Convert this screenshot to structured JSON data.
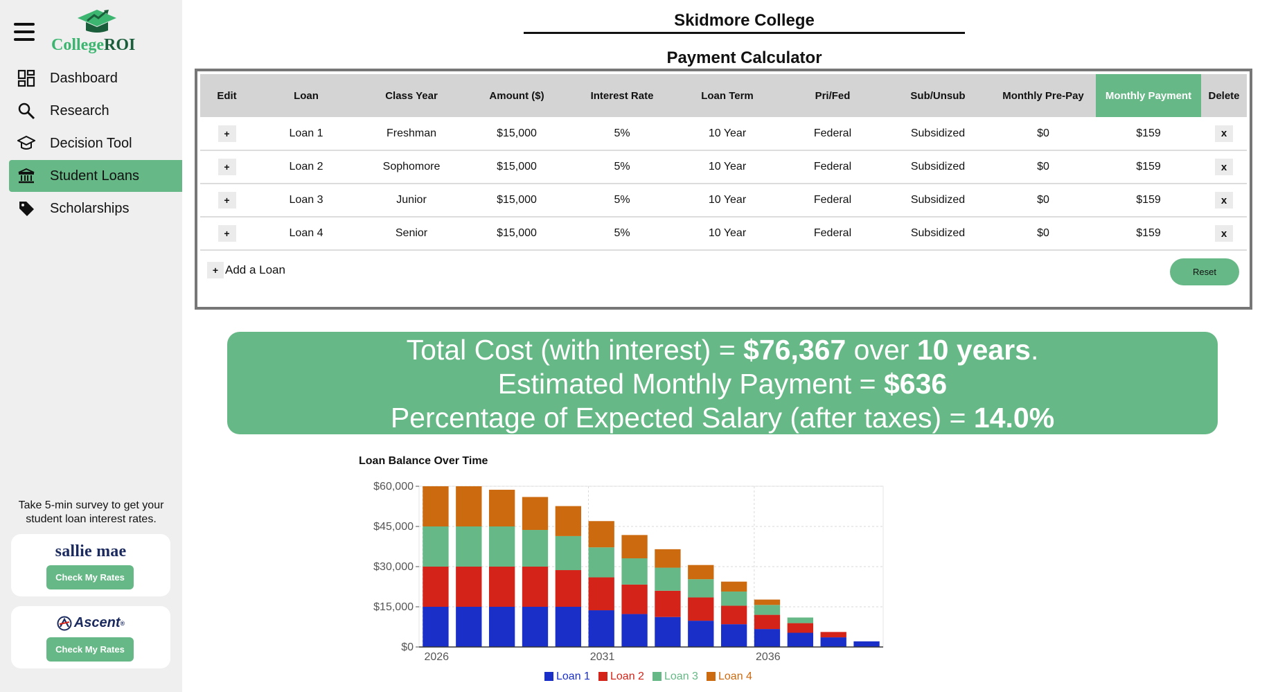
{
  "app": {
    "logo_part1": "College",
    "logo_part2": "ROI"
  },
  "sidebar": {
    "items": [
      {
        "label": "Dashboard",
        "icon": "dashboard-icon"
      },
      {
        "label": "Research",
        "icon": "search-icon"
      },
      {
        "label": "Decision Tool",
        "icon": "graduation-cap-icon"
      },
      {
        "label": "Student Loans",
        "icon": "bank-icon",
        "active": true
      },
      {
        "label": "Scholarships",
        "icon": "tag-icon"
      }
    ],
    "survey_text": "Take 5-min survey to get your student loan interest rates.",
    "partners": [
      {
        "name": "sallie mae",
        "button": "Check My Rates"
      },
      {
        "name": "Ascent",
        "trademark": "®",
        "button": "Check My Rates"
      }
    ]
  },
  "header": {
    "college": "Skidmore College",
    "calculator_title": "Payment Calculator"
  },
  "table": {
    "columns": [
      "Edit",
      "Loan",
      "Class Year",
      "Amount ($)",
      "Interest Rate",
      "Loan Term",
      "Pri/Fed",
      "Sub/Unsub",
      "Monthly Pre-Pay",
      "Monthly Payment",
      "Delete"
    ],
    "highlight_column": "Monthly Payment",
    "rows": [
      {
        "edit": "+",
        "loan": "Loan 1",
        "class_year": "Freshman",
        "amount": "$15,000",
        "rate": "5%",
        "term": "10 Year",
        "type": "Federal",
        "sub": "Subsidized",
        "prepay": "$0",
        "payment": "$159",
        "delete": "x"
      },
      {
        "edit": "+",
        "loan": "Loan 2",
        "class_year": "Sophomore",
        "amount": "$15,000",
        "rate": "5%",
        "term": "10 Year",
        "type": "Federal",
        "sub": "Subsidized",
        "prepay": "$0",
        "payment": "$159",
        "delete": "x"
      },
      {
        "edit": "+",
        "loan": "Loan 3",
        "class_year": "Junior",
        "amount": "$15,000",
        "rate": "5%",
        "term": "10 Year",
        "type": "Federal",
        "sub": "Subsidized",
        "prepay": "$0",
        "payment": "$159",
        "delete": "x"
      },
      {
        "edit": "+",
        "loan": "Loan 4",
        "class_year": "Senior",
        "amount": "$15,000",
        "rate": "5%",
        "term": "10 Year",
        "type": "Federal",
        "sub": "Subsidized",
        "prepay": "$0",
        "payment": "$159",
        "delete": "x"
      }
    ],
    "add_loan_plus": "+",
    "add_loan_label": "Add a Loan",
    "reset_label": "Reset"
  },
  "summary": {
    "line1_prefix": "Total Cost (with interest) = ",
    "total_cost": "$76,367",
    "line1_mid": " over ",
    "years": "10 years",
    "line1_suffix": ".",
    "line2_prefix": "Estimated Monthly Payment = ",
    "monthly_payment": "$636",
    "line3_prefix": "Percentage of Expected Salary (after taxes) = ",
    "salary_pct": "14.0%"
  },
  "chart_data": {
    "type": "bar",
    "stacked": true,
    "title": "Loan Balance Over Time",
    "xlabel": "",
    "ylabel": "",
    "x": [
      2026,
      2027,
      2028,
      2029,
      2030,
      2031,
      2032,
      2033,
      2034,
      2035,
      2036,
      2037,
      2038,
      2039
    ],
    "x_ticks": [
      "2026",
      "2031",
      "2036"
    ],
    "y_ticks": [
      "$0",
      "$15,000",
      "$30,000",
      "$45,000",
      "$60,000"
    ],
    "ylim": [
      0,
      60000
    ],
    "grid": true,
    "legend": "bottom",
    "series": [
      {
        "name": "Loan 1",
        "color": "#1a2fc8",
        "values": [
          15000,
          15000,
          15000,
          15000,
          15000,
          13700,
          12300,
          11200,
          9800,
          8500,
          6700,
          5300,
          3600,
          2100
        ]
      },
      {
        "name": "Loan 2",
        "color": "#d42419",
        "values": [
          15000,
          15000,
          15000,
          15000,
          13700,
          12300,
          11000,
          9800,
          8700,
          6900,
          5300,
          3600,
          2000,
          0
        ]
      },
      {
        "name": "Loan 3",
        "color": "#66b886",
        "values": [
          15000,
          15000,
          15000,
          13700,
          12700,
          11200,
          9800,
          8600,
          6800,
          5300,
          3700,
          2100,
          0,
          0
        ]
      },
      {
        "name": "Loan 4",
        "color": "#cc6a10",
        "values": [
          15000,
          15000,
          13700,
          12300,
          11200,
          9800,
          8700,
          6900,
          5300,
          3700,
          2000,
          0,
          0,
          0
        ]
      }
    ]
  }
}
